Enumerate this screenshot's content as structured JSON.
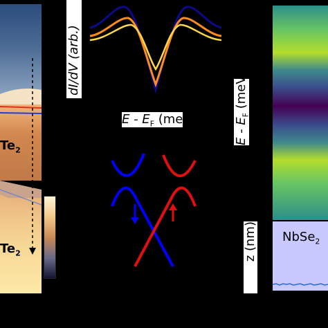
{
  "labels": {
    "left_top_suffix": "Te",
    "left_top_sub": "2",
    "left_bottom_suffix": "Te",
    "left_bottom_sub": "2",
    "didv_label": "dI/dV (arb.)",
    "energy_label_mid": "E - E",
    "energy_label_mid_sub": "F",
    "energy_label_mid_unit": " (meV",
    "energy_label_right": "E - E",
    "energy_label_right_sub": "F",
    "energy_label_right_unit": " (meV",
    "nbse2_label": "NbSe",
    "nbse2_sub": "2",
    "z_label": "z (nm)"
  },
  "colors": {
    "spectrum_dark": "#0b0b8a",
    "spectrum_orange": "#ff8c1a",
    "spectrum_yellow": "#ffd84a",
    "band_blue": "#0000ff",
    "band_red": "#e01010",
    "nbse2_panel": "#c7c9ff",
    "trace_blue": "#2a6ad8"
  }
}
